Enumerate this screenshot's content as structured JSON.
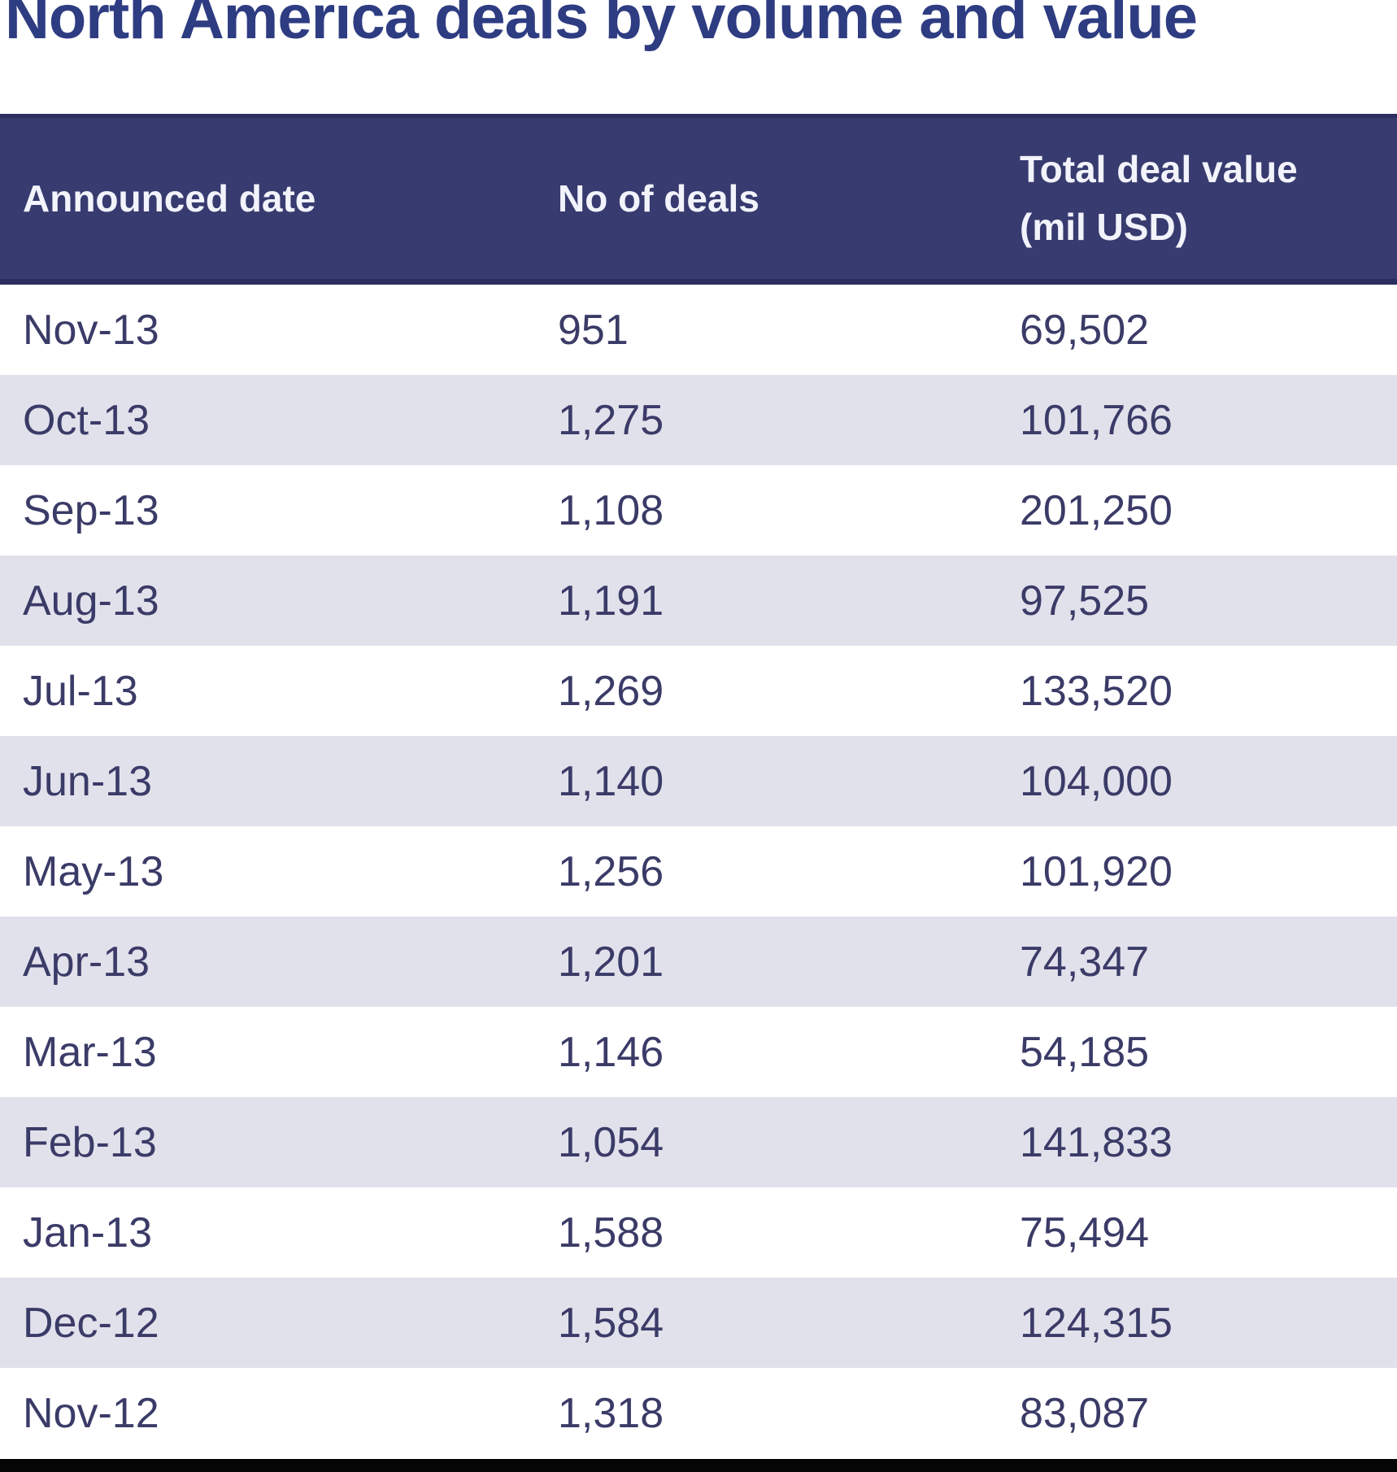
{
  "title": "North America deals by volume and value",
  "table": {
    "header": {
      "date_label": "Announced date",
      "deals_label": "No of deals",
      "value_label_line1": "Total deal value",
      "value_label_line2": "(mil USD)"
    },
    "rows": [
      {
        "date": "Nov-13",
        "deals": "951",
        "value": "69,502"
      },
      {
        "date": "Oct-13",
        "deals": "1,275",
        "value": "101,766"
      },
      {
        "date": "Sep-13",
        "deals": "1,108",
        "value": "201,250"
      },
      {
        "date": "Aug-13",
        "deals": "1,191",
        "value": "97,525"
      },
      {
        "date": "Jul-13",
        "deals": "1,269",
        "value": "133,520"
      },
      {
        "date": "Jun-13",
        "deals": "1,140",
        "value": "104,000"
      },
      {
        "date": "May-13",
        "deals": "1,256",
        "value": "101,920"
      },
      {
        "date": "Apr-13",
        "deals": "1,201",
        "value": "74,347"
      },
      {
        "date": "Mar-13",
        "deals": "1,146",
        "value": "54,185"
      },
      {
        "date": "Feb-13",
        "deals": "1,054",
        "value": "141,833"
      },
      {
        "date": "Jan-13",
        "deals": "1,588",
        "value": "75,494"
      },
      {
        "date": "Dec-12",
        "deals": "1,584",
        "value": "124,315"
      },
      {
        "date": "Nov-12",
        "deals": "1,318",
        "value": "83,087"
      }
    ]
  },
  "chart_data": {
    "type": "table",
    "title": "North America deals by volume and value",
    "columns": [
      "Announced date",
      "No of deals",
      "Total deal value (mil USD)"
    ],
    "rows": [
      [
        "Nov-13",
        951,
        69502
      ],
      [
        "Oct-13",
        1275,
        101766
      ],
      [
        "Sep-13",
        1108,
        201250
      ],
      [
        "Aug-13",
        1191,
        97525
      ],
      [
        "Jul-13",
        1269,
        133520
      ],
      [
        "Jun-13",
        1140,
        104000
      ],
      [
        "May-13",
        1256,
        101920
      ],
      [
        "Apr-13",
        1201,
        74347
      ],
      [
        "Mar-13",
        1146,
        54185
      ],
      [
        "Feb-13",
        1054,
        141833
      ],
      [
        "Jan-13",
        1588,
        75494
      ],
      [
        "Dec-12",
        1584,
        124315
      ],
      [
        "Nov-12",
        1318,
        83087
      ]
    ]
  },
  "colors": {
    "header_bg": "#373b6f",
    "header_border": "#2b2e5e",
    "header_text": "#f2f3fb",
    "row_alt_bg": "#e1e1ec",
    "row_text": "#3b3b68",
    "title_text": "#2e3c82",
    "bottom_bar": "#050505"
  }
}
